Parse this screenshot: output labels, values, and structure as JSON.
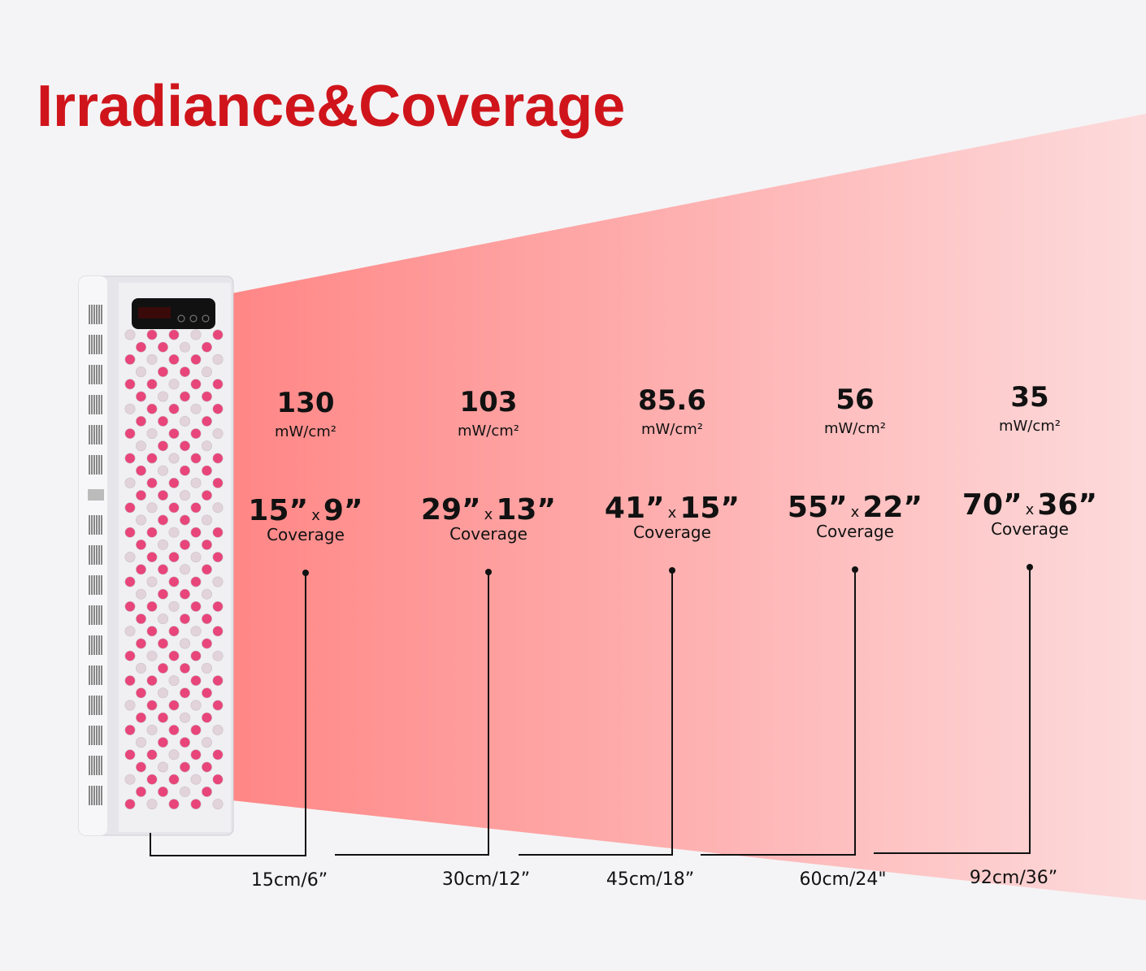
{
  "title": "Irradiance&Coverage",
  "columns": [
    {
      "irradiance": "130",
      "unit": "mW/cm²",
      "width": "15”",
      "separator": "x",
      "height": "9”",
      "coverage_label": "Coverage",
      "distance": "15cm/6”"
    },
    {
      "irradiance": "103",
      "unit": "mW/cm²",
      "width": "29”",
      "separator": "x",
      "height": "13”",
      "coverage_label": "Coverage",
      "distance": "30cm/12”"
    },
    {
      "irradiance": "85.6",
      "unit": "mW/cm²",
      "width": "41”",
      "separator": "x",
      "height": "15”",
      "coverage_label": "Coverage",
      "distance": "45cm/18”"
    },
    {
      "irradiance": "56",
      "unit": "mW/cm²",
      "width": "55”",
      "separator": "x",
      "height": "22”",
      "coverage_label": "Coverage",
      "distance": "60cm/24\""
    },
    {
      "irradiance": "35",
      "unit": "mW/cm²",
      "width": "70”",
      "separator": "x",
      "height": "36”",
      "coverage_label": "Coverage",
      "distance": "92cm/36”"
    }
  ]
}
